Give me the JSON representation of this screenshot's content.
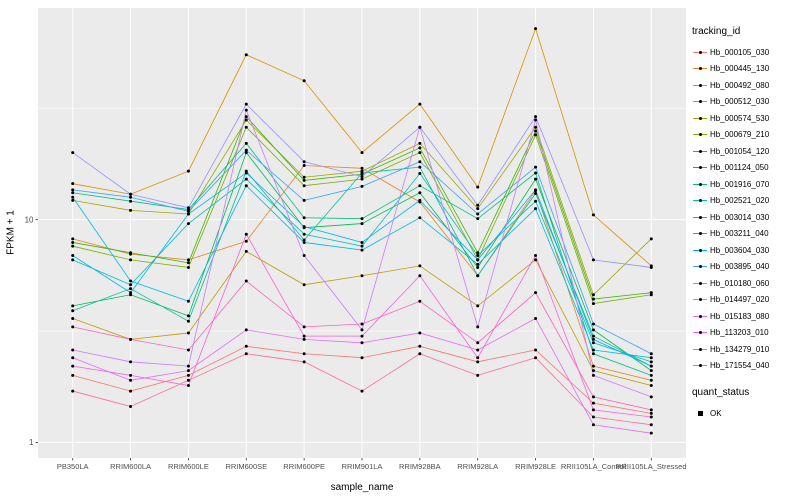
{
  "figure": {
    "xlabel": "sample_name",
    "ylabel": "FPKM + 1"
  },
  "legend": {
    "tracking_title": "tracking_id",
    "quant_title": "quant_status",
    "quant_label": "OK"
  },
  "chart_data": {
    "type": "line",
    "x_type": "categorical",
    "title": "",
    "xlabel": "sample_name",
    "ylabel": "FPKM + 1",
    "y_scale": "log10",
    "ylim": [
      1,
      90
    ],
    "y_ticks": [
      1,
      10
    ],
    "grid": true,
    "legend_position": "right",
    "panel_bg": "#EBEBEB",
    "grid_color": "#FFFFFF",
    "tick_label_color": "#4D4D4D",
    "point_color": "#000000",
    "categories": [
      "PB350LA",
      "RRIM600LA",
      "RRIM600LE",
      "RRIM600SE",
      "RRIM600PE",
      "RRIM901LA",
      "RRIM928BA",
      "RRIM928LA",
      "RRIM928LE",
      "RRII105LA_Control",
      "RRII105LA_Stressed"
    ],
    "series": [
      {
        "name": "Hb_000105_030",
        "color": "#F8766D",
        "values": [
          2.0,
          1.7,
          2.0,
          2.7,
          2.5,
          2.4,
          2.7,
          2.3,
          2.6,
          1.5,
          1.35
        ]
      },
      {
        "name": "Hb_000445_130",
        "color": "#E88526",
        "values": [
          8.2,
          7.0,
          6.6,
          8.0,
          17.5,
          17.0,
          12.0,
          5.6,
          13.5,
          2.2,
          1.9
        ]
      },
      {
        "name": "Hb_000492_080",
        "color": "#D89000",
        "values": [
          14.5,
          13.0,
          16.5,
          55,
          42,
          20,
          33,
          14.0,
          72,
          10.5,
          6.2
        ]
      },
      {
        "name": "Hb_000512_030",
        "color": "#C09B00",
        "values": [
          3.6,
          2.9,
          3.1,
          7.2,
          5.1,
          5.6,
          6.2,
          4.1,
          6.6,
          2.1,
          1.8
        ]
      },
      {
        "name": "Hb_000574_530",
        "color": "#A3A500",
        "values": [
          12.2,
          11.0,
          10.6,
          28,
          15.5,
          16.5,
          22,
          11.2,
          26,
          4.6,
          8.2
        ]
      },
      {
        "name": "Hb_000679_210",
        "color": "#7CAE00",
        "values": [
          7.6,
          6.6,
          6.1,
          26,
          14.2,
          15.2,
          20,
          6.6,
          24,
          4.2,
          4.6
        ]
      },
      {
        "name": "Hb_001054_120",
        "color": "#39B600",
        "values": [
          7.9,
          7.1,
          6.4,
          29,
          15.0,
          16.0,
          21,
          7.1,
          25,
          4.4,
          4.7
        ]
      },
      {
        "name": "Hb_001124_050",
        "color": "#00BB4E",
        "values": [
          4.1,
          4.6,
          3.7,
          20,
          9.2,
          9.6,
          13.2,
          6.1,
          15.2,
          3.2,
          2.1
        ]
      },
      {
        "name": "Hb_001916_070",
        "color": "#00BF7D",
        "values": [
          13.2,
          12.1,
          11.1,
          22,
          10.2,
          10.1,
          14.2,
          10.1,
          16.2,
          2.5,
          2.0
        ]
      },
      {
        "name": "Hb_002521_020",
        "color": "#00C1A3",
        "values": [
          3.9,
          4.9,
          3.5,
          16.5,
          8.1,
          16.2,
          17.2,
          5.6,
          13.1,
          3.0,
          2.2
        ]
      },
      {
        "name": "Hb_003014_030",
        "color": "#00BFC4",
        "values": [
          6.6,
          5.1,
          9.6,
          15.2,
          8.6,
          7.6,
          16.1,
          6.9,
          12.1,
          2.8,
          2.3
        ]
      },
      {
        "name": "Hb_003211_040",
        "color": "#00BAE0",
        "values": [
          12.6,
          5.3,
          4.3,
          14.2,
          7.9,
          7.3,
          10.2,
          6.3,
          11.2,
          2.6,
          2.4
        ]
      },
      {
        "name": "Hb_003604_030",
        "color": "#00B0F6",
        "values": [
          6.9,
          4.7,
          10.6,
          16.2,
          9.3,
          7.9,
          12.2,
          6.6,
          13.6,
          2.9,
          2.2
        ]
      },
      {
        "name": "Hb_003895_040",
        "color": "#35A2FF",
        "values": [
          13.6,
          12.6,
          10.9,
          20.5,
          12.2,
          14.1,
          18.2,
          10.6,
          17.2,
          3.4,
          2.5
        ]
      },
      {
        "name": "Hb_010180_060",
        "color": "#9590FF",
        "values": [
          20,
          13.0,
          11.3,
          33,
          18.2,
          15.6,
          26,
          11.6,
          29,
          6.6,
          6.1
        ]
      },
      {
        "name": "Hb_014497_020",
        "color": "#C77CFF",
        "values": [
          2.6,
          2.3,
          2.2,
          31,
          6.9,
          3.2,
          26,
          3.3,
          28,
          2.0,
          1.6
        ]
      },
      {
        "name": "Hb_015183_080",
        "color": "#E76BF3",
        "values": [
          2.4,
          1.9,
          2.1,
          3.2,
          2.9,
          2.8,
          3.1,
          2.6,
          3.6,
          1.2,
          1.1
        ]
      },
      {
        "name": "Hb_113203_010",
        "color": "#FA62DB",
        "values": [
          2.2,
          2.0,
          1.8,
          8.6,
          3.0,
          3.0,
          5.6,
          2.4,
          6.9,
          1.4,
          1.3
        ]
      },
      {
        "name": "Hb_134279_010",
        "color": "#FF62BC",
        "values": [
          3.3,
          2.9,
          2.6,
          5.3,
          3.3,
          3.4,
          4.3,
          2.8,
          4.7,
          1.6,
          1.4
        ]
      },
      {
        "name": "Hb_171554_040",
        "color": "#FF6A98",
        "values": [
          1.7,
          1.45,
          1.9,
          2.5,
          2.3,
          1.7,
          2.5,
          2.0,
          2.4,
          1.3,
          1.2
        ]
      }
    ]
  }
}
